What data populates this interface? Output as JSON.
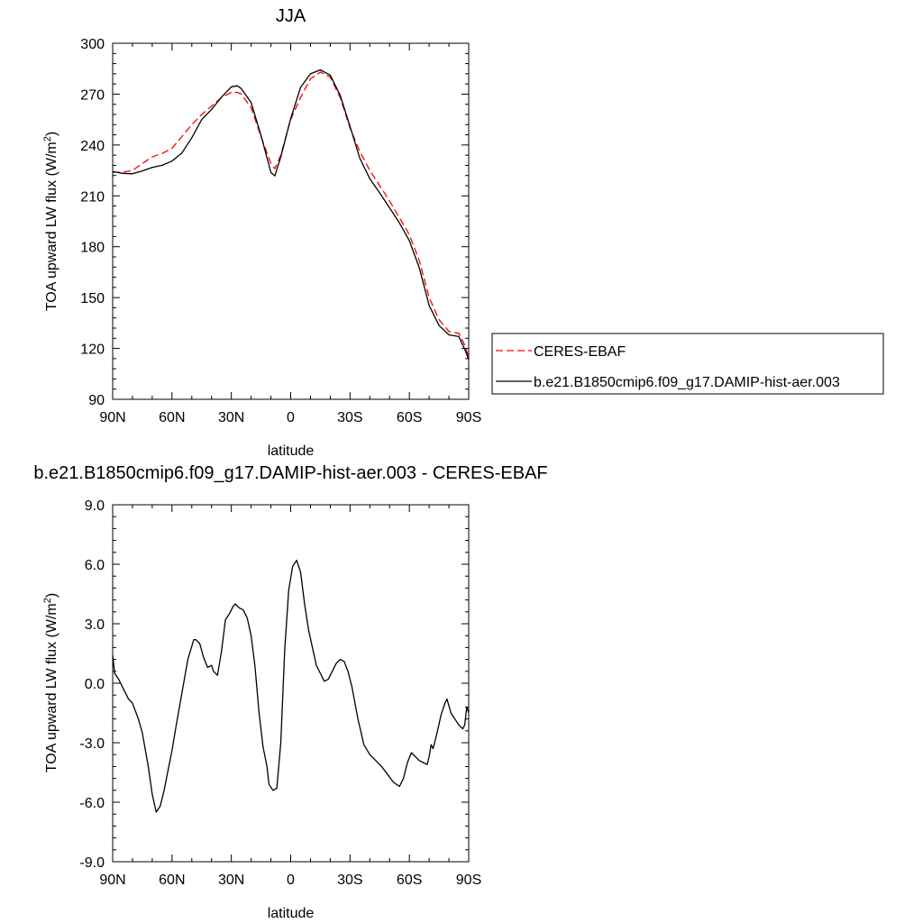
{
  "chart_data": [
    {
      "type": "line",
      "title": "JJA",
      "xlabel": "latitude",
      "ylabel": "TOA upward LW flux (W/m",
      "ylabel_sup": "2",
      "ylabel_end": ")",
      "xlim": [
        90,
        -90
      ],
      "ylim": [
        90,
        300
      ],
      "x_ticks": [
        90,
        60,
        30,
        0,
        -30,
        -60,
        -90
      ],
      "x_ticklabels": [
        "90N",
        "60N",
        "30N",
        "0",
        "30S",
        "60S",
        "90S"
      ],
      "y_ticks": [
        90,
        120,
        150,
        180,
        210,
        240,
        270,
        300
      ],
      "y_ticklabels": [
        "90",
        "120",
        "150",
        "180",
        "210",
        "240",
        "270",
        "300"
      ],
      "legend_position": "right",
      "series": [
        {
          "name": "CERES-EBAF",
          "color": "#ff0000",
          "dash": "dashed",
          "x": [
            90,
            85,
            80,
            75,
            70,
            65,
            60,
            55,
            50,
            45,
            40,
            35,
            30,
            27,
            25,
            20,
            15,
            10,
            8,
            5,
            0,
            -5,
            -10,
            -15,
            -20,
            -25,
            -30,
            -35,
            -40,
            -45,
            -50,
            -55,
            -60,
            -65,
            -70,
            -75,
            -80,
            -85,
            -88,
            -90
          ],
          "y": [
            224,
            224,
            225,
            229,
            233,
            235,
            238,
            245,
            252,
            258,
            263,
            268,
            271,
            271,
            270,
            262,
            245,
            229,
            226,
            234,
            255,
            268,
            279,
            283,
            280,
            268,
            250,
            236,
            225,
            216,
            207,
            197,
            187,
            172,
            150,
            137,
            130,
            129,
            122,
            115
          ]
        },
        {
          "name": "b.e21.B1850cmip6.f09_g17.DAMIP-hist-aer.003",
          "color": "#000000",
          "dash": "solid",
          "x": [
            90,
            85,
            80,
            75,
            70,
            65,
            60,
            55,
            50,
            45,
            40,
            35,
            30,
            27,
            25,
            20,
            15,
            10,
            8,
            5,
            0,
            -5,
            -10,
            -15,
            -20,
            -25,
            -30,
            -35,
            -40,
            -45,
            -50,
            -55,
            -60,
            -65,
            -70,
            -75,
            -80,
            -85,
            -88,
            -90
          ],
          "y": [
            224.3,
            223.3,
            223.0,
            224.7,
            226.8,
            228.0,
            230.5,
            235.3,
            244.3,
            255.0,
            261.0,
            268.2,
            274.3,
            274.9,
            273.3,
            265.0,
            245.6,
            223.7,
            221.8,
            232.9,
            255.6,
            274.0,
            282.0,
            284.3,
            281.2,
            269.3,
            251.0,
            232.0,
            220.1,
            211.7,
            203.0,
            194.0,
            183.5,
            167.7,
            145.4,
            133.5,
            128.0,
            127.0,
            119.5,
            113.4
          ]
        }
      ]
    },
    {
      "type": "line",
      "title": "b.e21.B1850cmip6.f09_g17.DAMIP-hist-aer.003 - CERES-EBAF",
      "xlabel": "latitude",
      "ylabel": "TOA upward LW flux (W/m",
      "ylabel_sup": "2",
      "ylabel_end": ")",
      "xlim": [
        90,
        -90
      ],
      "ylim": [
        -9,
        9
      ],
      "x_ticks": [
        90,
        60,
        30,
        0,
        -30,
        -60,
        -90
      ],
      "x_ticklabels": [
        "90N",
        "60N",
        "30N",
        "0",
        "30S",
        "60S",
        "90S"
      ],
      "y_ticks": [
        -9,
        -6,
        -3,
        0,
        3,
        6,
        9
      ],
      "y_ticklabels": [
        "-9.0",
        "-6.0",
        "-3.0",
        "0.0",
        "3.0",
        "6.0",
        "9.0"
      ],
      "series": [
        {
          "name": "",
          "color": "#000000",
          "dash": "solid",
          "x": [
            90,
            89,
            87,
            85,
            82,
            80,
            77,
            75,
            72,
            70,
            68,
            66,
            64,
            62,
            60,
            58,
            55,
            52,
            49,
            48,
            46,
            44,
            42,
            40,
            39,
            37,
            35,
            33,
            31,
            29,
            28,
            26,
            24,
            22,
            20,
            18,
            16,
            14,
            12,
            11,
            9,
            7,
            5,
            3,
            1,
            -1,
            -3,
            -5,
            -7,
            -9,
            -11,
            -13,
            -15,
            -17,
            -19,
            -21,
            -23,
            -25,
            -27,
            -29,
            -31,
            -34,
            -37,
            -40,
            -43,
            -46,
            -49,
            -52,
            -55,
            -57,
            -59,
            -61,
            -63,
            -65,
            -67,
            -69,
            -70,
            -71,
            -72,
            -74,
            -76,
            -78,
            -79,
            -81,
            -83,
            -85,
            -87,
            -88,
            -89,
            -90
          ],
          "y": [
            1.4,
            0.5,
            0.2,
            -0.2,
            -0.8,
            -1.0,
            -1.8,
            -2.5,
            -4.2,
            -5.6,
            -6.5,
            -6.2,
            -5.4,
            -4.4,
            -3.4,
            -2.2,
            -0.5,
            1.2,
            2.2,
            2.2,
            2.0,
            1.3,
            0.8,
            0.9,
            0.6,
            0.4,
            1.6,
            3.2,
            3.5,
            3.9,
            4.0,
            3.8,
            3.7,
            3.3,
            2.4,
            0.8,
            -1.5,
            -3.2,
            -4.2,
            -5.1,
            -5.4,
            -5.3,
            -3.0,
            1.7,
            4.7,
            5.9,
            6.2,
            5.6,
            4.0,
            2.7,
            1.8,
            0.9,
            0.5,
            0.1,
            0.2,
            0.6,
            1.0,
            1.2,
            1.1,
            0.6,
            -0.2,
            -1.8,
            -3.1,
            -3.6,
            -3.9,
            -4.2,
            -4.6,
            -5.0,
            -5.2,
            -4.8,
            -4.0,
            -3.5,
            -3.7,
            -3.9,
            -4.0,
            -4.1,
            -3.7,
            -3.1,
            -3.3,
            -2.5,
            -1.6,
            -1.0,
            -0.8,
            -1.5,
            -1.8,
            -2.1,
            -2.3,
            -2.1,
            -1.2,
            -1.5
          ]
        }
      ]
    }
  ]
}
